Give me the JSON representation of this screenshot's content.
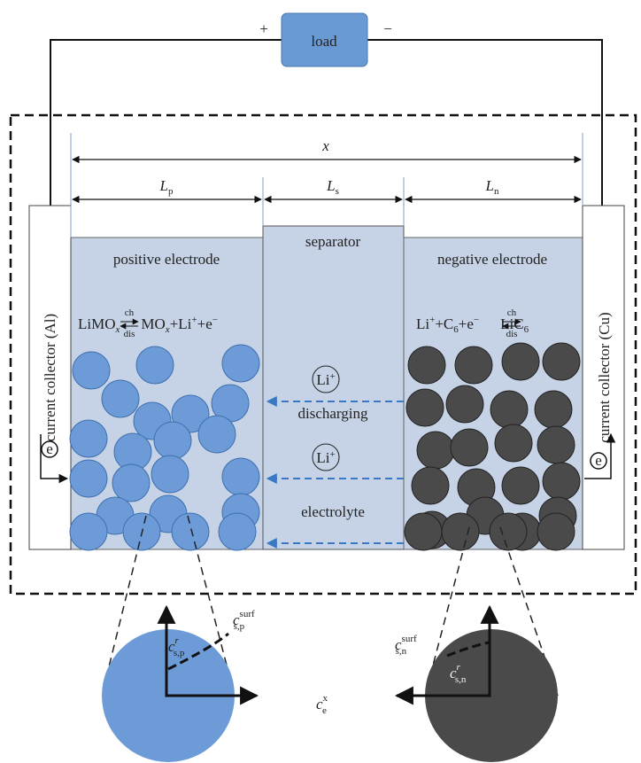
{
  "load": "load",
  "plus": "+",
  "minus": "−",
  "x": "x",
  "lengths": {
    "positive": {
      "main": "L",
      "sub": "p"
    },
    "separator": {
      "main": "L",
      "sub": "s"
    },
    "negative": {
      "main": "L",
      "sub": "n"
    }
  },
  "regions": {
    "separator": "separator",
    "positive": "positive electrode",
    "negative": "negative electrode",
    "collector_left": "current collector (Al)",
    "collector_right": "current collector (Cu)",
    "electron": "e"
  },
  "reactions": {
    "positive": [
      "LiMO",
      "x",
      "MO",
      "x",
      "+Li",
      "+",
      "+e",
      "−"
    ],
    "negative": [
      "Li",
      "+",
      "+C",
      "6",
      "+e",
      "−",
      "LiC",
      "6"
    ],
    "charge": "ch",
    "discharge": "dis"
  },
  "ion": "Li",
  "ion_charge": "+",
  "discharging": "discharging",
  "electrolyte": "electrolyte",
  "concentrations": {
    "sp_r": {
      "main": "c",
      "sub": "s,p",
      "sup": "r"
    },
    "sp_surf": {
      "main": "c",
      "sub": "s,p",
      "sup": "surf"
    },
    "sn_surf": {
      "main": "c",
      "sub": "s,n",
      "sup": "surf"
    },
    "sn_r": {
      "main": "c",
      "sub": "s,n",
      "sup": "r"
    },
    "e_x": {
      "main": "c",
      "sub": "e",
      "sup": "x"
    }
  }
}
